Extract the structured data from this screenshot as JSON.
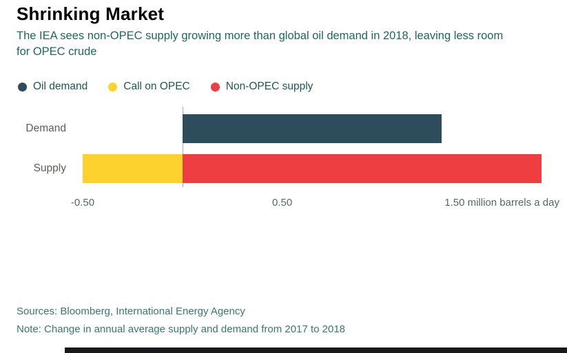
{
  "header": {
    "title": "Shrinking Market",
    "subtitle": "The IEA sees non-OPEC supply growing more than global oil demand in 2018, leaving less room for OPEC crude"
  },
  "legend": {
    "items": [
      {
        "label": "Oil demand",
        "color": "#2d4d5c"
      },
      {
        "label": "Call on OPEC",
        "color": "#fdd22e"
      },
      {
        "label": "Non-OPEC supply",
        "color": "#ee3e42"
      }
    ]
  },
  "chart_data": {
    "type": "bar",
    "orientation": "horizontal",
    "title": "Shrinking Market",
    "subtitle": "The IEA sees non-OPEC supply growing more than global oil demand in 2018, leaving less room for OPEC crude",
    "categories": [
      "Demand",
      "Supply"
    ],
    "series": [
      {
        "name": "Oil demand",
        "color": "#2d4d5c",
        "values": [
          1.3,
          0
        ]
      },
      {
        "name": "Call on OPEC",
        "color": "#fdd22e",
        "values": [
          0,
          -0.5
        ]
      },
      {
        "name": "Non-OPEC supply",
        "color": "#ee3e42",
        "values": [
          0,
          1.8
        ]
      }
    ],
    "xlim": [
      -0.5,
      1.8
    ],
    "xticks": [
      {
        "value": -0.5,
        "label": "-0.50"
      },
      {
        "value": 0.5,
        "label": "0.50"
      },
      {
        "value": 1.5,
        "label": "1.50 million barrels a day"
      }
    ],
    "unit": "million barrels a day",
    "grid": "zero-line-only",
    "legend_position": "top"
  },
  "footer": {
    "sources": "Sources: Bloomberg, International Energy Agency",
    "note": "Note: Change in annual average supply and demand from 2017 to 2018"
  }
}
